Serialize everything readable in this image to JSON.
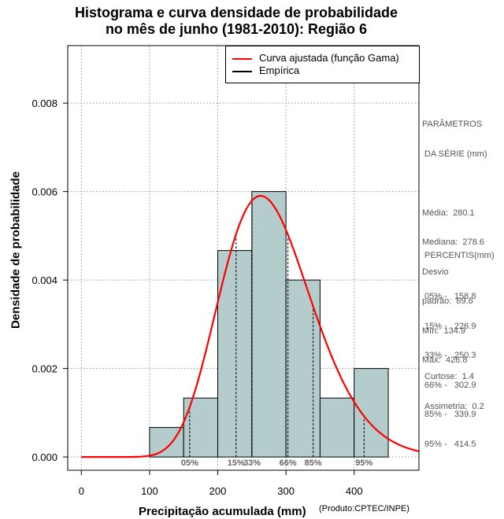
{
  "chart_data": {
    "type": "bar",
    "title_line1": "Histograma e curva densidade de probabilidade",
    "title_line2": "no mês de junho (1981-2010): Região 6",
    "xlabel": "Precipitação acumulada (mm)",
    "ylabel": "Densidade de probabilidade",
    "credit": "(Produto:CPTEC/INPE)",
    "xlim": [
      -20,
      495
    ],
    "ylim": [
      -0.0003,
      0.0093
    ],
    "x_ticks": [
      "0",
      "100",
      "200",
      "300",
      "400"
    ],
    "y_ticks": [
      "0.000",
      "0.002",
      "0.004",
      "0.006",
      "0.008"
    ],
    "grid": true,
    "bins": [
      {
        "start": 100,
        "end": 150,
        "density": 0.000667
      },
      {
        "start": 150,
        "end": 200,
        "density": 0.001333
      },
      {
        "start": 200,
        "end": 250,
        "density": 0.004667
      },
      {
        "start": 250,
        "end": 300,
        "density": 0.006
      },
      {
        "start": 300,
        "end": 350,
        "density": 0.004
      },
      {
        "start": 350,
        "end": 400,
        "density": 0.001333
      },
      {
        "start": 400,
        "end": 450,
        "density": 0.002
      }
    ],
    "gamma_fit": {
      "shape": 16.3,
      "rate": 0.0582,
      "color": "#ff0000"
    },
    "empirical_color": "#000000",
    "bar_color": "#b4cccc",
    "percentile_markers": [
      {
        "label": "05%",
        "value": 158.8
      },
      {
        "label": "15%",
        "value": 226.9
      },
      {
        "label": "33%",
        "value": 250.3
      },
      {
        "label": "66%",
        "value": 302.9
      },
      {
        "label": "85%",
        "value": 339.9
      },
      {
        "label": "95%",
        "value": 414.5
      }
    ],
    "legend": {
      "position": "top-right",
      "fit_label": "Curva ajustada (função Gama)",
      "empirical_label": "Empírica"
    }
  },
  "stats": {
    "header1": "PARÂMETROS",
    "header2": " DA SÉRIE (mm)",
    "media": "Média:  280.1",
    "mediana": "Mediana:  278.6",
    "desvio": "Desvio",
    "padrao": "padrão:  69.6",
    "min": "Mín:  134.9",
    "max": "Máx:  426.8",
    "pct_header": "PERCENTIS(mm)",
    "p05": "05% -   158.8",
    "p15": "15% -   226.9",
    "p33": "33% -   250.3",
    "p66": "66% -   302.9",
    "p85": "85% -   339.9",
    "p95": "95% -   414.5",
    "curtose": "Curtose:  1.4",
    "assimetria": "Assimetria:  0.2"
  }
}
